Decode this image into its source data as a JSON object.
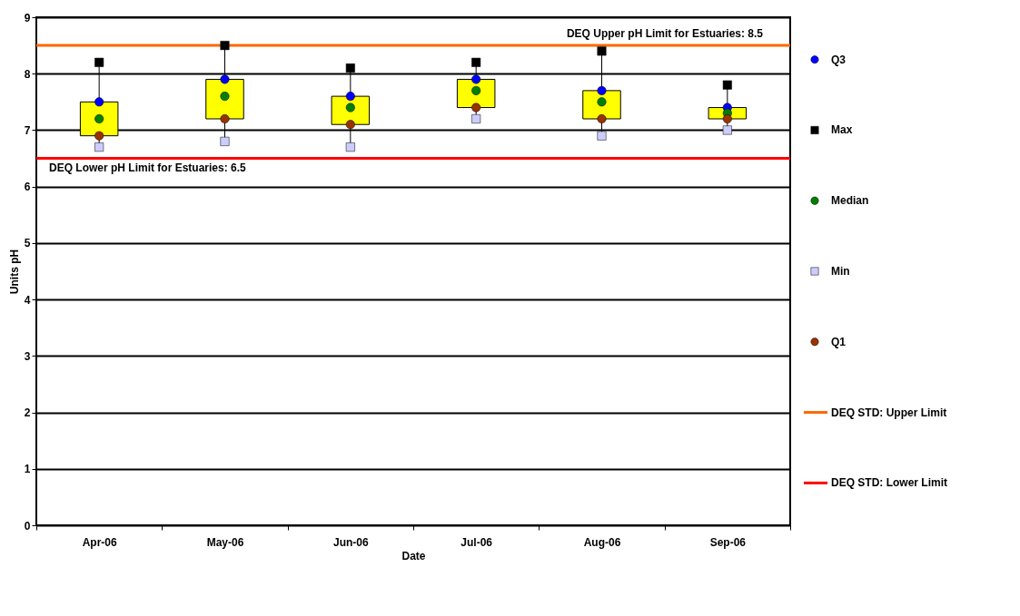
{
  "chart_data": {
    "type": "box",
    "xlabel": "Date",
    "ylabel": "Units pH",
    "categories": [
      "Apr-06",
      "May-06",
      "Jun-06",
      "Jul-06",
      "Aug-06",
      "Sep-06"
    ],
    "color": "#ffff00",
    "boxes": [
      {
        "low": 6.7,
        "q1": 6.9,
        "q3": 7.5,
        "high": 8.2
      },
      {
        "low": 6.8,
        "q1": 7.2,
        "q3": 7.9,
        "high": 8.5
      },
      {
        "low": 6.7,
        "q1": 7.1,
        "q3": 7.6,
        "high": 8.1
      },
      {
        "low": 7.2,
        "q1": 7.4,
        "q3": 7.9,
        "high": 8.2
      },
      {
        "low": 6.9,
        "q1": 7.2,
        "q3": 7.7,
        "high": 8.4
      },
      {
        "low": 7.0,
        "q1": 7.2,
        "q3": 7.4,
        "high": 7.8
      }
    ],
    "series": [
      {
        "name": "Q3",
        "type": "scatter",
        "marker": "circle",
        "color": "#0000ff",
        "values": [
          7.5,
          7.9,
          7.6,
          7.9,
          7.7,
          7.4
        ]
      },
      {
        "name": "Max",
        "type": "scatter",
        "marker": "square",
        "color": "#000000",
        "values": [
          8.2,
          8.5,
          8.1,
          8.2,
          8.4,
          7.8
        ]
      },
      {
        "name": "Median",
        "type": "scatter",
        "marker": "circle",
        "color": "#008000",
        "values": [
          7.2,
          7.6,
          7.4,
          7.7,
          7.5,
          7.3
        ]
      },
      {
        "name": "Min",
        "type": "scatter",
        "marker": "square",
        "color": "#ccccff",
        "values": [
          6.7,
          6.8,
          6.7,
          7.2,
          6.9,
          7.0
        ]
      },
      {
        "name": "Q1",
        "type": "scatter",
        "marker": "circle",
        "color": "#993300",
        "values": [
          6.9,
          7.2,
          7.1,
          7.4,
          7.2,
          7.2
        ]
      }
    ],
    "ref_lines": [
      {
        "axis": "y",
        "value": 8.5,
        "label": "DEQ STD: Upper Limit",
        "color": "#ff6600"
      },
      {
        "axis": "y",
        "value": 6.5,
        "label": "DEQ STD: Lower Limit",
        "color": "#ff0000"
      }
    ],
    "annotations": [
      {
        "text": "DEQ Upper pH Limit for Estuaries: 8.5",
        "y": 8.5
      },
      {
        "text": "DEQ Lower pH Limit for Estuaries: 6.5",
        "y": 6.5
      }
    ],
    "ylim": [
      0,
      9
    ],
    "yticks": [
      0,
      1,
      2,
      3,
      4,
      5,
      6,
      7,
      8,
      9
    ],
    "grid": "y",
    "legend": "right"
  }
}
